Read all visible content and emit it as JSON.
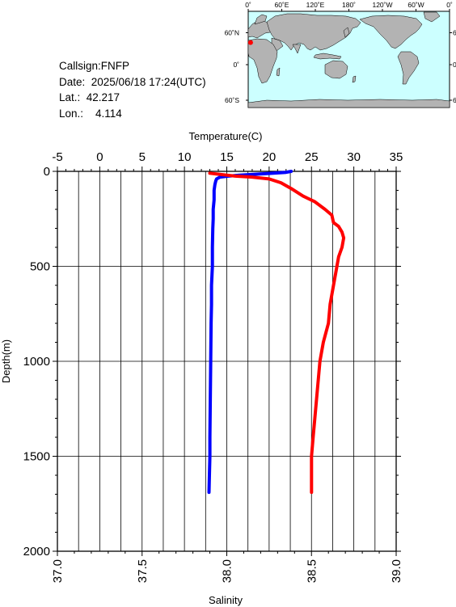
{
  "info": {
    "callsign": "Callsign:FNFP",
    "date": "Date:  2025/06/18 17:24(UTC)",
    "lat": "Lat.:  42.217",
    "lon": "Lon.:    4.114"
  },
  "map": {
    "top_labels": [
      "0˚",
      "60˚E",
      "120˚E",
      "180˚",
      "120˚W",
      "60˚W",
      "0˚"
    ],
    "lat_labels": [
      "60˚N",
      "0˚",
      "60˚S"
    ],
    "ocean_color": "#ccffff",
    "land_color": "#b3b3b3",
    "marker_color": "#ff0000"
  },
  "chart_data": {
    "type": "line",
    "title": "",
    "top_axis": {
      "label": "Temperature(C)",
      "range": [
        -5,
        35
      ],
      "ticks": [
        "-5",
        "0",
        "5",
        "10",
        "15",
        "20",
        "25",
        "30",
        "35"
      ]
    },
    "bottom_axis": {
      "label": "Salinity",
      "range": [
        37.0,
        39.0
      ],
      "ticks": [
        "37.0",
        "37.5",
        "38.0",
        "38.5",
        "39.0"
      ]
    },
    "y_axis": {
      "label": "Depth(m)",
      "range": [
        0,
        2000
      ],
      "reversed": true,
      "ticks": [
        "0",
        "500",
        "1000",
        "1500",
        "2000"
      ]
    },
    "grid": true,
    "series": [
      {
        "name": "",
        "axis": "temperature",
        "color": "#0000ff",
        "points": [
          [
            22.6,
            0
          ],
          [
            22.0,
            5
          ],
          [
            20.5,
            10
          ],
          [
            18.5,
            15
          ],
          [
            16.5,
            20
          ],
          [
            15.2,
            25
          ],
          [
            14.2,
            30
          ],
          [
            13.8,
            40
          ],
          [
            13.7,
            50
          ],
          [
            13.6,
            70
          ],
          [
            13.5,
            100
          ],
          [
            13.5,
            150
          ],
          [
            13.4,
            200
          ],
          [
            13.4,
            250
          ],
          [
            13.35,
            300
          ],
          [
            13.3,
            400
          ],
          [
            13.3,
            500
          ],
          [
            13.2,
            600
          ],
          [
            13.2,
            700
          ],
          [
            13.15,
            800
          ],
          [
            13.1,
            1000
          ],
          [
            13.05,
            1200
          ],
          [
            13.0,
            1400
          ],
          [
            13.0,
            1500
          ],
          [
            12.95,
            1600
          ],
          [
            12.9,
            1690
          ]
        ]
      },
      {
        "name": "",
        "axis": "salinity",
        "color": "#ff0000",
        "points": [
          [
            37.9,
            10
          ],
          [
            37.95,
            15
          ],
          [
            38.0,
            20
          ],
          [
            38.05,
            25
          ],
          [
            38.15,
            30
          ],
          [
            38.25,
            40
          ],
          [
            38.32,
            60
          ],
          [
            38.38,
            90
          ],
          [
            38.45,
            130
          ],
          [
            38.52,
            160
          ],
          [
            38.58,
            200
          ],
          [
            38.62,
            230
          ],
          [
            38.63,
            270
          ],
          [
            38.66,
            290
          ],
          [
            38.68,
            320
          ],
          [
            38.69,
            350
          ],
          [
            38.68,
            400
          ],
          [
            38.66,
            450
          ],
          [
            38.65,
            500
          ],
          [
            38.63,
            600
          ],
          [
            38.61,
            700
          ],
          [
            38.6,
            800
          ],
          [
            38.57,
            900
          ],
          [
            38.55,
            1000
          ],
          [
            38.54,
            1100
          ],
          [
            38.53,
            1200
          ],
          [
            38.52,
            1300
          ],
          [
            38.51,
            1400
          ],
          [
            38.5,
            1500
          ],
          [
            38.5,
            1600
          ],
          [
            38.5,
            1690
          ]
        ]
      }
    ]
  }
}
